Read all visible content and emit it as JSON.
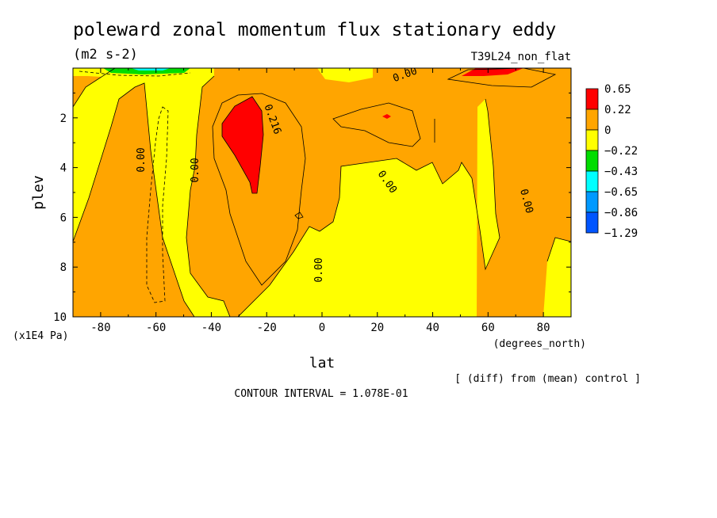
{
  "chart_data": {
    "type": "heatmap",
    "title": "poleward zonal momentum flux stationary eddy",
    "units": "(m2 s-2)",
    "run_label": "T39L24_non_flat",
    "xlabel": "lat",
    "x_units": "(degrees_north)",
    "ylabel": "plev",
    "y_units": "(x1E4 Pa)",
    "xlim": [
      -90,
      90
    ],
    "ylim": [
      0,
      10
    ],
    "y_inverted": true,
    "x_ticks": [
      "-80",
      "-60",
      "-40",
      "-20",
      "0",
      "20",
      "40",
      "60",
      "80"
    ],
    "x_tick_values": [
      -80,
      -60,
      -40,
      -20,
      0,
      20,
      40,
      60,
      80
    ],
    "y_ticks": [
      "2",
      "4",
      "6",
      "8",
      "10"
    ],
    "y_tick_values": [
      2,
      4,
      6,
      8,
      10
    ],
    "colorbar": {
      "labels": [
        "0.65",
        "0.22",
        "0",
        "−0.22",
        "−0.43",
        "−0.65",
        "−0.86",
        "−1.29"
      ],
      "colors": [
        "#ff0000",
        "#ffa500",
        "#ffff00",
        "#00dd00",
        "#00ffff",
        "#0099ff",
        "#0055ff",
        "#0055ff"
      ]
    },
    "contour_labels": [
      "0.00",
      "0.00",
      "0.00",
      "0.00",
      "0.00",
      "0.00",
      "0.216"
    ],
    "contour_interval_text": "CONTOUR INTERVAL = 1.078E-01",
    "diff_note": "[ (diff) from (mean) control ]"
  }
}
